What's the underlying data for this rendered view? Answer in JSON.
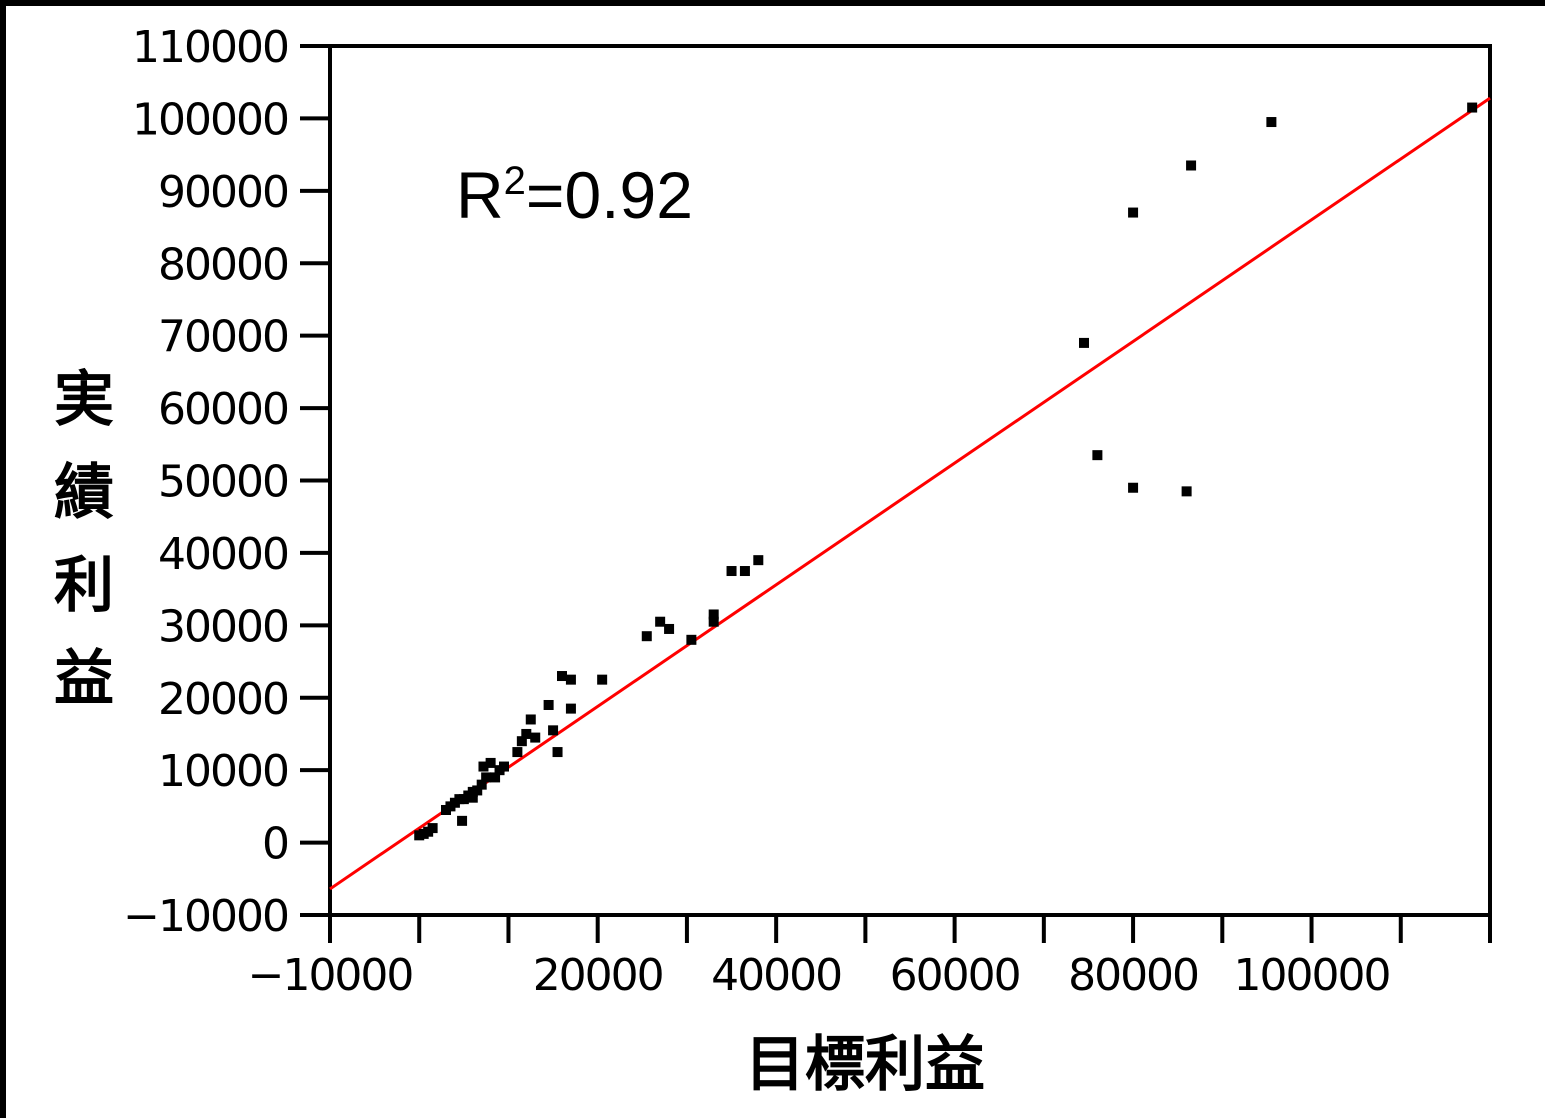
{
  "chart_data": {
    "type": "scatter",
    "title": "",
    "xlabel": "目標利益",
    "ylabel": "実績利益",
    "annotation": {
      "base": "R",
      "sup": "2",
      "rest": "=0.92"
    },
    "xlim": [
      -10000,
      120000
    ],
    "ylim": [
      -10000,
      110000
    ],
    "x_tick_values": [
      -10000,
      0,
      10000,
      20000,
      30000,
      40000,
      50000,
      60000,
      70000,
      80000,
      90000,
      100000,
      110000,
      120000
    ],
    "x_tick_labels": [
      {
        "value": -10000,
        "label": "−10000"
      },
      {
        "value": 20000,
        "label": "20000"
      },
      {
        "value": 40000,
        "label": "40000"
      },
      {
        "value": 60000,
        "label": "60000"
      },
      {
        "value": 80000,
        "label": "80000"
      },
      {
        "value": 100000,
        "label": "100000"
      }
    ],
    "y_ticks": [
      {
        "value": 110000,
        "label": "110000"
      },
      {
        "value": 100000,
        "label": "100000"
      },
      {
        "value": 90000,
        "label": "90000"
      },
      {
        "value": 80000,
        "label": "80000"
      },
      {
        "value": 70000,
        "label": "70000"
      },
      {
        "value": 60000,
        "label": "60000"
      },
      {
        "value": 50000,
        "label": "50000"
      },
      {
        "value": 40000,
        "label": "40000"
      },
      {
        "value": 30000,
        "label": "30000"
      },
      {
        "value": 20000,
        "label": "20000"
      },
      {
        "value": 10000,
        "label": "10000"
      },
      {
        "value": 0,
        "label": "0"
      },
      {
        "value": -10000,
        "label": "−10000"
      }
    ],
    "grid": false,
    "series": [
      {
        "points": [
          [
            0,
            1000
          ],
          [
            500,
            1200
          ],
          [
            1000,
            1500
          ],
          [
            1500,
            2000
          ],
          [
            3000,
            4500
          ],
          [
            3500,
            5000
          ],
          [
            4000,
            5500
          ],
          [
            4500,
            6000
          ],
          [
            5000,
            6000
          ],
          [
            4800,
            3000
          ],
          [
            5500,
            6500
          ],
          [
            6000,
            7000
          ],
          [
            6000,
            6200
          ],
          [
            6500,
            7200
          ],
          [
            7000,
            8000
          ],
          [
            7200,
            10500
          ],
          [
            7500,
            9000
          ],
          [
            8000,
            11000
          ],
          [
            8500,
            9000
          ],
          [
            9000,
            10000
          ],
          [
            9500,
            10500
          ],
          [
            11000,
            12500
          ],
          [
            11500,
            14000
          ],
          [
            12000,
            15000
          ],
          [
            12500,
            17000
          ],
          [
            13000,
            14500
          ],
          [
            14500,
            19000
          ],
          [
            15000,
            15500
          ],
          [
            15500,
            12500
          ],
          [
            16000,
            23000
          ],
          [
            17000,
            22500
          ],
          [
            17000,
            18500
          ],
          [
            20500,
            22500
          ],
          [
            25500,
            28500
          ],
          [
            27000,
            30500
          ],
          [
            28000,
            29500
          ],
          [
            30500,
            28000
          ],
          [
            33000,
            31500
          ],
          [
            33000,
            30500
          ],
          [
            35000,
            37500
          ],
          [
            36500,
            37500
          ],
          [
            38000,
            39000
          ],
          [
            74500,
            69000
          ],
          [
            76000,
            53500
          ],
          [
            80000,
            87000
          ],
          [
            80000,
            49000
          ],
          [
            86000,
            48500
          ],
          [
            86500,
            93500
          ],
          [
            95500,
            99500
          ],
          [
            118000,
            101500
          ]
        ]
      }
    ],
    "fit_line": {
      "slope": 0.84,
      "intercept": 2000,
      "color": "#ff0000"
    }
  }
}
